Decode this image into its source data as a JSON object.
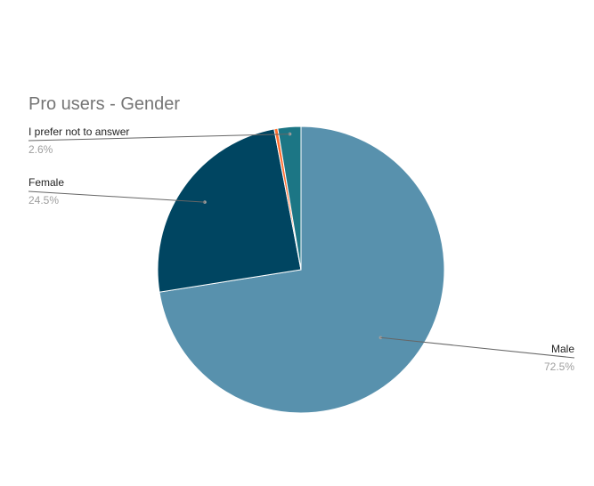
{
  "chart_data": {
    "type": "pie",
    "title": "Pro users - Gender",
    "slices": [
      {
        "name": "Male",
        "value": 72.5,
        "label": "72.5%",
        "color": "#5891ad"
      },
      {
        "name": "Female",
        "value": 24.5,
        "label": "24.5%",
        "color": "#004561"
      },
      {
        "name": "",
        "value": 0.4,
        "label": "",
        "color": "#ff6f31"
      },
      {
        "name": "I prefer not to answer",
        "value": 2.6,
        "label": "2.6%",
        "color": "#1c7685"
      }
    ],
    "legend": "none"
  }
}
